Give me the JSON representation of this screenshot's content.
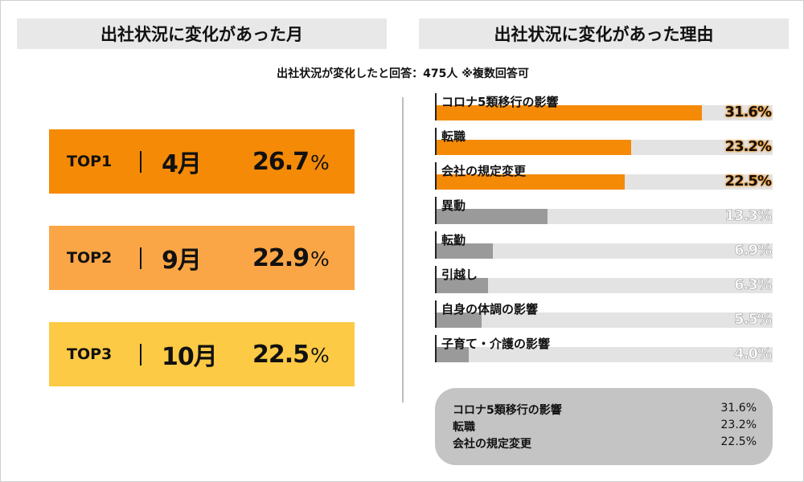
{
  "left_header": "出社状況に変化があった月",
  "right_header": "出社状況に変化があった理由",
  "subtitle": "出社状況が変化したと回答：475人 ※複数回答可",
  "top_months": [
    {
      "rank": "TOP1",
      "month": "4月",
      "pct": "26.7",
      "color": "#f58a07"
    },
    {
      "rank": "TOP2",
      "month": "9月",
      "pct": "22.9",
      "color": "#fba646"
    },
    {
      "rank": "TOP3",
      "month": "10月",
      "pct": "22.5",
      "color": "#fdca45"
    }
  ],
  "percent_unit": "%",
  "chart_data": {
    "type": "bar",
    "orientation": "horizontal",
    "categories": [
      "コロナ5類移行の影響",
      "転職",
      "会社の規定変更",
      "異動",
      "転勤",
      "引越し",
      "自身の体調の影響",
      "子育て・介護の影響"
    ],
    "values": [
      31.6,
      23.2,
      22.5,
      13.3,
      6.9,
      6.3,
      5.5,
      4.0
    ],
    "value_labels": [
      "31.6%",
      "23.2%",
      "22.5%",
      "13.3%",
      "6.9%",
      "6.3%",
      "5.5%",
      "4.0%"
    ],
    "xlim": [
      0,
      40
    ],
    "highlight_count": 3,
    "colors": {
      "highlight": "#f58a07",
      "normal": "#9a9a9a",
      "track": "#e3e3e3",
      "highlight_text": "#f58a07",
      "normal_text": "#d4d4d4"
    }
  },
  "summary": [
    {
      "label": "コロナ5類移行の影響",
      "value": "31.6%"
    },
    {
      "label": "転職",
      "value": "23.2%"
    },
    {
      "label": "会社の規定変更",
      "value": "22.5%"
    }
  ]
}
